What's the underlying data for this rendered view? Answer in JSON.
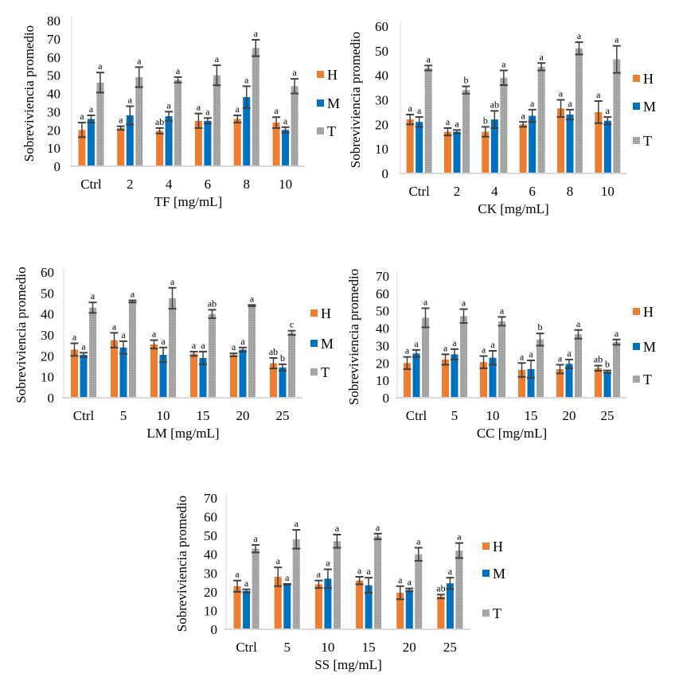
{
  "colors": {
    "H": "#ED7D31",
    "M": "#0070C0",
    "T": "#A5A5A5",
    "error_bar": "#404040",
    "axis": "#D9D9D9"
  },
  "chart_data": [
    {
      "type": "bar",
      "xlabel": "TF [mg/mL]",
      "ylabel": "Sobreviviencia promedio",
      "ylim": [
        0,
        80
      ],
      "yticks": [
        0,
        10,
        20,
        30,
        40,
        50,
        60,
        70,
        80
      ],
      "grid": false,
      "legend": "right",
      "categories": [
        "Ctrl",
        "2",
        "4",
        "6",
        "8",
        "10"
      ],
      "series": [
        {
          "name": "H",
          "values": [
            20,
            21,
            19.5,
            25,
            26,
            24
          ],
          "errors": [
            4,
            1,
            1.5,
            4,
            2,
            3
          ],
          "letters": [
            "a",
            "a",
            "ab",
            "a",
            "a",
            "a"
          ]
        },
        {
          "name": "M",
          "values": [
            26,
            28,
            27.5,
            25,
            38,
            20
          ],
          "errors": [
            2,
            5,
            2.5,
            1.5,
            6,
            1.5
          ],
          "letters": [
            "a",
            "a",
            "a",
            "a",
            "a",
            "a"
          ]
        },
        {
          "name": "T",
          "values": [
            46,
            49,
            47.5,
            50,
            65,
            44
          ],
          "errors": [
            5.5,
            5.5,
            1.5,
            5.5,
            4.5,
            4
          ],
          "letters": [
            "a",
            "a",
            "a",
            "a",
            "a",
            "a"
          ]
        }
      ]
    },
    {
      "type": "bar",
      "xlabel": "CK [mg/mL]",
      "ylabel": "Sobreviviencia promedio",
      "ylim": [
        0,
        60
      ],
      "yticks": [
        0,
        10,
        20,
        30,
        40,
        50,
        60
      ],
      "grid": false,
      "legend": "right",
      "categories": [
        "Ctrl",
        "2",
        "4",
        "6",
        "8",
        "10"
      ],
      "series": [
        {
          "name": "H",
          "values": [
            22,
            17,
            17,
            20,
            26.5,
            25
          ],
          "errors": [
            2,
            1.5,
            2,
            1,
            3.5,
            4.5
          ],
          "letters": [
            "a",
            "a",
            "b",
            "a",
            "a",
            "a"
          ]
        },
        {
          "name": "M",
          "values": [
            21,
            17,
            22,
            23.5,
            24,
            21.5
          ],
          "errors": [
            2,
            0.7,
            3.5,
            2.5,
            2,
            1.5
          ],
          "letters": [
            "a",
            "a",
            "ab",
            "a",
            "a",
            "a"
          ]
        },
        {
          "name": "T",
          "values": [
            43,
            34,
            39,
            43.5,
            51,
            46.5
          ],
          "errors": [
            1,
            1.5,
            3,
            1.5,
            2.5,
            5.5
          ],
          "letters": [
            "a",
            "b",
            "a",
            "a",
            "a",
            "a"
          ]
        }
      ]
    },
    {
      "type": "bar",
      "xlabel": "LM [mg/mL]",
      "ylabel": "Sobreviviencia promedio",
      "ylim": [
        0,
        60
      ],
      "yticks": [
        0,
        10,
        20,
        30,
        40,
        50,
        60
      ],
      "grid": false,
      "legend": "right",
      "categories": [
        "Ctrl",
        "5",
        "10",
        "15",
        "20",
        "25"
      ],
      "series": [
        {
          "name": "H",
          "values": [
            23,
            27.5,
            25.5,
            21,
            20.5,
            16.5
          ],
          "errors": [
            3,
            3.5,
            2,
            1,
            0.7,
            2.5
          ],
          "letters": [
            "a",
            "a",
            "a",
            "a",
            "a",
            "ab"
          ]
        },
        {
          "name": "M",
          "values": [
            20.5,
            24,
            20.5,
            19,
            23,
            14.5
          ],
          "errors": [
            1,
            3,
            3.5,
            3,
            1,
            1.5
          ],
          "letters": [
            "a",
            "a",
            "a",
            "a",
            "a",
            "b"
          ]
        },
        {
          "name": "T",
          "values": [
            43,
            46,
            47.5,
            40,
            44,
            31
          ],
          "errors": [
            2.5,
            0.5,
            5,
            2,
            0.3,
            1
          ],
          "letters": [
            "a",
            "a",
            "a",
            "ab",
            "a",
            "c"
          ]
        }
      ]
    },
    {
      "type": "bar",
      "xlabel": "CC [mg/mL]",
      "ylabel": "Sobreviviencia promedio",
      "ylim": [
        0,
        70
      ],
      "yticks": [
        0,
        10,
        20,
        30,
        40,
        50,
        60,
        70
      ],
      "grid": false,
      "legend": "right",
      "categories": [
        "Ctrl",
        "5",
        "10",
        "15",
        "20",
        "25"
      ],
      "series": [
        {
          "name": "H",
          "values": [
            20,
            22,
            20.5,
            16,
            16.5,
            17
          ],
          "errors": [
            3.5,
            3,
            3.5,
            4,
            2.5,
            1.5
          ],
          "letters": [
            "a",
            "a",
            "a",
            "a",
            "a",
            "ab"
          ]
        },
        {
          "name": "M",
          "values": [
            25.5,
            25,
            23,
            16.5,
            19.5,
            15
          ],
          "errors": [
            2,
            3,
            4,
            5,
            2.5,
            0.7
          ],
          "letters": [
            "a",
            "a",
            "a",
            "a",
            "a",
            "b"
          ]
        },
        {
          "name": "T",
          "values": [
            46,
            47,
            44,
            33.5,
            36.5,
            32
          ],
          "errors": [
            5.5,
            4,
            2.5,
            3.5,
            2.5,
            1.5
          ],
          "letters": [
            "a",
            "a",
            "a",
            "b",
            "a",
            "a"
          ]
        }
      ]
    },
    {
      "type": "bar",
      "xlabel": "SS [mg/mL]",
      "ylabel": "Sobreviviencia promedio",
      "ylim": [
        0,
        70
      ],
      "yticks": [
        0,
        10,
        20,
        30,
        40,
        50,
        60,
        70
      ],
      "grid": false,
      "legend": "right",
      "categories": [
        "Ctrl",
        "5",
        "10",
        "15",
        "20",
        "25"
      ],
      "series": [
        {
          "name": "H",
          "values": [
            23,
            28,
            24,
            26,
            19.5,
            17.5
          ],
          "errors": [
            3,
            5,
            2,
            2,
            3.5,
            1
          ],
          "letters": [
            "a",
            "a",
            "a",
            "a",
            "a",
            "ab"
          ]
        },
        {
          "name": "M",
          "values": [
            20.5,
            24,
            27,
            23.5,
            21,
            24.5
          ],
          "errors": [
            0.8,
            0.2,
            5,
            4,
            0.8,
            3
          ],
          "letters": [
            "a",
            "a",
            "a",
            "a",
            "a",
            "a"
          ]
        },
        {
          "name": "T",
          "values": [
            43,
            48,
            47,
            49.5,
            40,
            42
          ],
          "errors": [
            2,
            5,
            3.5,
            1.5,
            3.5,
            4
          ],
          "letters": [
            "a",
            "a",
            "a",
            "a",
            "a",
            "a"
          ]
        }
      ]
    }
  ]
}
